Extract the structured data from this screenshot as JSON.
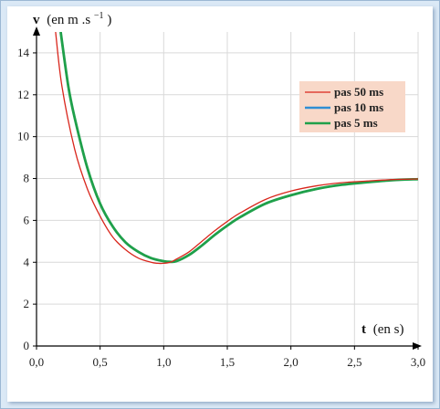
{
  "chart_data": {
    "type": "line",
    "xlabel_var": "t",
    "xlabel_unit": "(en s)",
    "ylabel_var": "v",
    "ylabel_unit_prefix": "(en m .s",
    "ylabel_unit_sup": "−1",
    "ylabel_unit_suffix": ")",
    "xlim": [
      0,
      3.0
    ],
    "ylim": [
      0,
      15
    ],
    "x_ticks": [
      "0,0",
      "0,5",
      "1,0",
      "1,5",
      "2,0",
      "2,5",
      "3,0"
    ],
    "x_tick_values": [
      0,
      0.5,
      1.0,
      1.5,
      2.0,
      2.5,
      3.0
    ],
    "y_ticks": [
      "0",
      "2",
      "4",
      "6",
      "8",
      "10",
      "12",
      "14"
    ],
    "y_tick_values": [
      0,
      2,
      4,
      6,
      8,
      10,
      12,
      14
    ],
    "grid": true,
    "legend_position": "top-right",
    "series": [
      {
        "name": "pas 50 ms",
        "color": "#d9261c",
        "x": [
          0.15,
          0.2,
          0.3,
          0.4,
          0.5,
          0.6,
          0.7,
          0.8,
          0.9,
          0.95,
          1.0,
          1.05,
          1.1,
          1.2,
          1.3,
          1.4,
          1.5,
          1.6,
          1.8,
          2.0,
          2.2,
          2.4,
          2.6,
          2.8,
          3.0
        ],
        "y": [
          15.0,
          12.4,
          9.4,
          7.5,
          6.2,
          5.2,
          4.6,
          4.2,
          4.0,
          3.95,
          3.95,
          4.0,
          4.15,
          4.5,
          5.0,
          5.5,
          5.95,
          6.35,
          7.0,
          7.4,
          7.65,
          7.8,
          7.88,
          7.95,
          7.98
        ]
      },
      {
        "name": "pas 10 ms",
        "color": "#2f8ed4",
        "x": [
          0.19,
          0.25,
          0.3,
          0.4,
          0.5,
          0.6,
          0.7,
          0.8,
          0.9,
          1.0,
          1.05,
          1.1,
          1.2,
          1.3,
          1.4,
          1.5,
          1.6,
          1.8,
          2.0,
          2.2,
          2.4,
          2.6,
          2.8,
          3.0
        ],
        "y": [
          15.0,
          12.4,
          10.9,
          8.5,
          6.8,
          5.7,
          4.95,
          4.5,
          4.2,
          4.05,
          4.02,
          4.05,
          4.35,
          4.8,
          5.3,
          5.75,
          6.15,
          6.8,
          7.2,
          7.5,
          7.7,
          7.82,
          7.92,
          7.97
        ]
      },
      {
        "name": "pas 5 ms",
        "color": "#1fa04a",
        "x": [
          0.19,
          0.25,
          0.3,
          0.4,
          0.5,
          0.6,
          0.7,
          0.8,
          0.9,
          1.0,
          1.05,
          1.1,
          1.2,
          1.3,
          1.4,
          1.5,
          1.6,
          1.8,
          2.0,
          2.2,
          2.4,
          2.6,
          2.8,
          3.0
        ],
        "y": [
          15.0,
          12.4,
          10.9,
          8.5,
          6.8,
          5.7,
          4.95,
          4.5,
          4.2,
          4.05,
          4.02,
          4.05,
          4.35,
          4.8,
          5.3,
          5.75,
          6.15,
          6.8,
          7.2,
          7.5,
          7.7,
          7.82,
          7.92,
          7.97
        ]
      }
    ],
    "legend_background": "#f8d8c8"
  }
}
